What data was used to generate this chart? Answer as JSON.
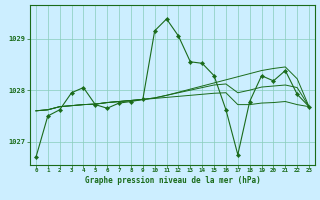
{
  "title": "Graphe pression niveau de la mer (hPa)",
  "background_color": "#cceeff",
  "grid_color": "#88ccbb",
  "line_color": "#1a6b1a",
  "marker_color": "#1a6b1a",
  "xlim": [
    -0.5,
    23.5
  ],
  "ylim": [
    1026.55,
    1029.65
  ],
  "yticks": [
    1027,
    1028,
    1029
  ],
  "xticks": [
    0,
    1,
    2,
    3,
    4,
    5,
    6,
    7,
    8,
    9,
    10,
    11,
    12,
    13,
    14,
    15,
    16,
    17,
    18,
    19,
    20,
    21,
    22,
    23
  ],
  "series0": [
    1026.7,
    1027.5,
    1027.62,
    1027.95,
    1028.05,
    1027.72,
    1027.65,
    1027.75,
    1027.78,
    1027.82,
    1029.15,
    1029.38,
    1029.05,
    1028.55,
    1028.52,
    1028.28,
    1027.62,
    1026.75,
    1027.78,
    1028.28,
    1028.18,
    1028.38,
    1027.92,
    1027.68
  ],
  "series1": [
    1027.6,
    1027.62,
    1027.68,
    1027.7,
    1027.72,
    1027.73,
    1027.76,
    1027.78,
    1027.8,
    1027.82,
    1027.84,
    1027.86,
    1027.88,
    1027.9,
    1027.92,
    1027.94,
    1027.95,
    1027.72,
    1027.72,
    1027.75,
    1027.76,
    1027.78,
    1027.72,
    1027.68
  ],
  "series2": [
    1027.6,
    1027.62,
    1027.68,
    1027.7,
    1027.72,
    1027.73,
    1027.76,
    1027.78,
    1027.8,
    1027.82,
    1027.85,
    1027.9,
    1027.95,
    1028.0,
    1028.05,
    1028.1,
    1028.12,
    1027.95,
    1028.0,
    1028.06,
    1028.08,
    1028.1,
    1028.05,
    1027.68
  ],
  "series3": [
    1027.6,
    1027.62,
    1027.68,
    1027.7,
    1027.72,
    1027.73,
    1027.76,
    1027.78,
    1027.8,
    1027.82,
    1027.85,
    1027.9,
    1027.96,
    1028.02,
    1028.08,
    1028.14,
    1028.2,
    1028.26,
    1028.32,
    1028.38,
    1028.42,
    1028.45,
    1028.22,
    1027.68
  ]
}
